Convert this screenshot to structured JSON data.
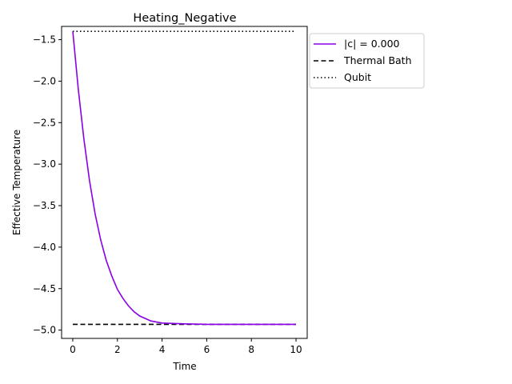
{
  "chart_data": {
    "type": "line",
    "title": "Heating_Negative",
    "xlabel": "Time",
    "ylabel": "Effective Temperature",
    "xlim": [
      -0.5,
      10.5
    ],
    "ylim": [
      -5.1,
      -1.34
    ],
    "x_ticks": [
      0,
      2,
      4,
      6,
      8,
      10
    ],
    "y_ticks": [
      -1.5,
      -2.0,
      -2.5,
      -3.0,
      -3.5,
      -4.0,
      -4.5,
      -5.0
    ],
    "x_tick_labels": [
      "0",
      "2",
      "4",
      "6",
      "8",
      "10"
    ],
    "y_tick_labels": [
      "−1.5",
      "−2.0",
      "−2.5",
      "−3.0",
      "−3.5",
      "−4.0",
      "−4.5",
      "−5.0"
    ],
    "grid": false,
    "legend_position": "outside upper right",
    "series": [
      {
        "name": "|c| = 0.000",
        "color": "#8a00e6",
        "style": "solid",
        "x": [
          0,
          0.25,
          0.5,
          0.75,
          1,
          1.25,
          1.5,
          1.75,
          2,
          2.25,
          2.5,
          2.75,
          3,
          3.5,
          4,
          5,
          6,
          7,
          8,
          9,
          10
        ],
        "y": [
          -1.4,
          -2.1,
          -2.7,
          -3.2,
          -3.6,
          -3.91,
          -4.16,
          -4.35,
          -4.51,
          -4.62,
          -4.71,
          -4.78,
          -4.83,
          -4.89,
          -4.915,
          -4.925,
          -4.93,
          -4.93,
          -4.93,
          -4.93,
          -4.93
        ]
      },
      {
        "name": "Thermal Bath",
        "color": "#000000",
        "style": "dashed",
        "x": [
          0,
          10
        ],
        "y": [
          -4.93,
          -4.93
        ]
      },
      {
        "name": "Qubit",
        "color": "#000000",
        "style": "dotted",
        "x": [
          0,
          10
        ],
        "y": [
          -1.4,
          -1.4
        ]
      }
    ]
  }
}
